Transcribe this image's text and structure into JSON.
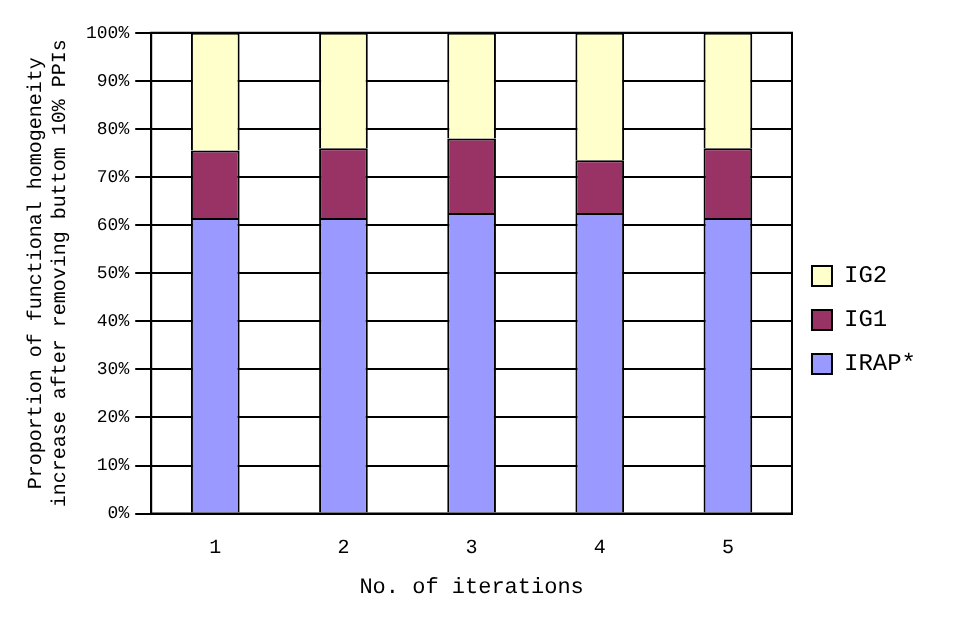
{
  "chart_data": {
    "type": "bar",
    "stacked": true,
    "categories": [
      "1",
      "2",
      "3",
      "4",
      "5"
    ],
    "series": [
      {
        "name": "IRAP*",
        "color": "#9999ff",
        "values": [
          61.5,
          61.5,
          62.5,
          62.5,
          61.5
        ]
      },
      {
        "name": "IG1",
        "color": "#993366",
        "values": [
          14,
          14.5,
          15.5,
          11,
          14.5
        ]
      },
      {
        "name": "IG2",
        "color": "#ffffcc",
        "values": [
          24.5,
          24,
          22,
          26.5,
          24
        ]
      }
    ],
    "xlabel": "No. of iterations",
    "ylabel": "Proportion of functional homogeneity increase after removing buttom 10% PPIs",
    "ylim": [
      0,
      100
    ],
    "yticks": [
      {
        "value": 0,
        "label": "0%"
      },
      {
        "value": 10,
        "label": "10%"
      },
      {
        "value": 20,
        "label": "20%"
      },
      {
        "value": 30,
        "label": "30%"
      },
      {
        "value": 40,
        "label": "40%"
      },
      {
        "value": 50,
        "label": "50%"
      },
      {
        "value": 60,
        "label": "60%"
      },
      {
        "value": 70,
        "label": "70%"
      },
      {
        "value": 80,
        "label": "80%"
      },
      {
        "value": 90,
        "label": "90%"
      },
      {
        "value": 100,
        "label": "100%"
      }
    ],
    "grid": "y",
    "legend": "right"
  }
}
